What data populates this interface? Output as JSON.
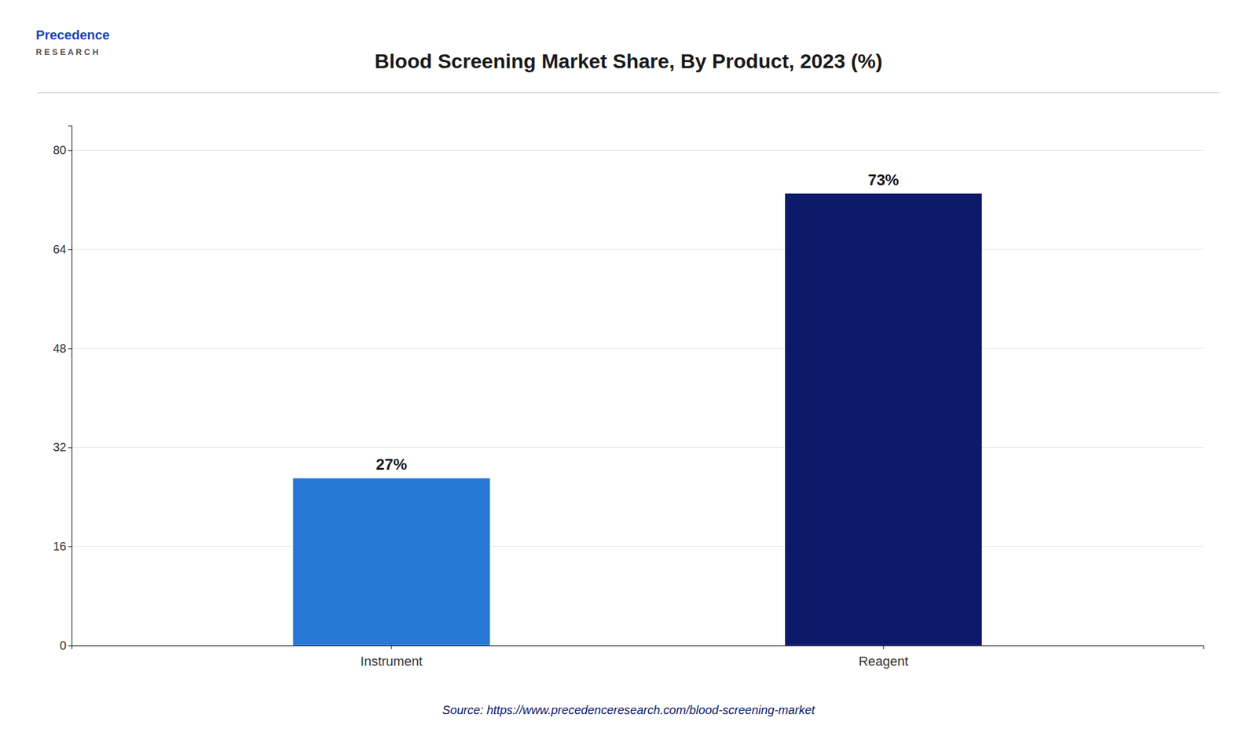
{
  "chart_data": {
    "type": "bar",
    "title": "Blood Screening Market Share, By Product, 2023 (%)",
    "categories": [
      "Instrument",
      "Reagent"
    ],
    "values": [
      27,
      73
    ],
    "value_labels": [
      "27%",
      "73%"
    ],
    "data_labels": true,
    "colors": [
      "#2878D6",
      "#0D1A6B"
    ],
    "ylim": [
      0,
      84
    ],
    "yticks": [
      0,
      16,
      32,
      48,
      64,
      80
    ],
    "grid": true,
    "annotations": [
      "Source: https://www.precedenceresearch.com/blood-screening-market",
      "Precedence",
      "R E S E A R C H"
    ]
  }
}
